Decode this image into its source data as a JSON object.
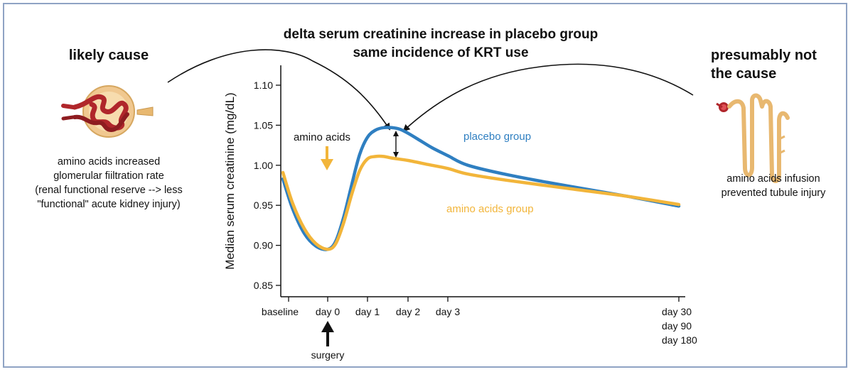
{
  "header": {
    "title_line1": "delta serum creatinine increase in placebo group",
    "title_line2": "same incidence of KRT use"
  },
  "left_panel": {
    "title": "likely cause",
    "text": [
      "amino acids increased",
      "glomerular fiiltration rate",
      "(renal functional reserve --> less",
      "\"functional\" acute kidney injury)"
    ],
    "icon": "kidney-glomerulus-icon"
  },
  "right_panel": {
    "title_line1": "presumably not",
    "title_line2": "the cause",
    "text": [
      "amino acids infusion",
      "prevented tubule injury"
    ],
    "icon": "kidney-tubule-icon"
  },
  "annotations": {
    "amino_acids": "amino acids",
    "surgery": "surgery",
    "placebo_label": "placebo group",
    "amino_label": "amino acids group"
  },
  "colors": {
    "placebo": "#2f7fc1",
    "amino": "#f2b53a",
    "kidney": "#b0262b",
    "tubule": "#e8b870",
    "frame": "#8fa3c4"
  },
  "chart_data": {
    "type": "line",
    "ylabel": "Median serum creatinine (mg/dL)",
    "xlabel": "",
    "ylim": [
      0.84,
      1.13
    ],
    "yticks": [
      "1.10",
      "1.05",
      "1.00",
      "0.95",
      "0.90",
      "0.85"
    ],
    "x_tick_labels": [
      {
        "label": [
          "baseline"
        ],
        "x": -1
      },
      {
        "label": [
          "day 0"
        ],
        "x": 0
      },
      {
        "label": [
          "day 1"
        ],
        "x": 1
      },
      {
        "label": [
          "day 2"
        ],
        "x": 2
      },
      {
        "label": [
          "day 3"
        ],
        "x": 3
      },
      {
        "label": [
          "day 30",
          "day 90",
          "day 180"
        ],
        "x": 8.75
      }
    ],
    "series": [
      {
        "name": "placebo group",
        "color": "#2f7fc1",
        "points": [
          [
            -1.2,
            0.983
          ],
          [
            -0.9,
            0.946
          ],
          [
            -0.6,
            0.915
          ],
          [
            -0.3,
            0.899
          ],
          [
            0,
            0.895
          ],
          [
            0.2,
            0.905
          ],
          [
            0.4,
            0.935
          ],
          [
            0.6,
            0.975
          ],
          [
            0.8,
            1.013
          ],
          [
            1.0,
            1.035
          ],
          [
            1.2,
            1.044
          ],
          [
            1.4,
            1.047
          ],
          [
            1.6,
            1.047
          ],
          [
            1.8,
            1.045
          ],
          [
            2.0,
            1.04
          ],
          [
            2.3,
            1.031
          ],
          [
            2.6,
            1.022
          ],
          [
            3.0,
            1.012
          ],
          [
            3.5,
            1.0
          ],
          [
            4.5,
            0.988
          ],
          [
            6.0,
            0.974
          ],
          [
            7.5,
            0.961
          ],
          [
            8.75,
            0.949
          ]
        ]
      },
      {
        "name": "amino acids group",
        "color": "#f2b53a",
        "points": [
          [
            -1.2,
            0.991
          ],
          [
            -0.9,
            0.953
          ],
          [
            -0.6,
            0.921
          ],
          [
            -0.3,
            0.902
          ],
          [
            0,
            0.895
          ],
          [
            0.2,
            0.902
          ],
          [
            0.4,
            0.928
          ],
          [
            0.6,
            0.963
          ],
          [
            0.8,
            0.993
          ],
          [
            1.0,
            1.008
          ],
          [
            1.2,
            1.011
          ],
          [
            1.4,
            1.011
          ],
          [
            1.6,
            1.009
          ],
          [
            2.0,
            1.006
          ],
          [
            2.5,
            1.001
          ],
          [
            3.0,
            0.996
          ],
          [
            3.5,
            0.989
          ],
          [
            4.5,
            0.981
          ],
          [
            6.0,
            0.971
          ],
          [
            7.5,
            0.961
          ],
          [
            8.75,
            0.951
          ]
        ]
      }
    ],
    "grid": false
  }
}
